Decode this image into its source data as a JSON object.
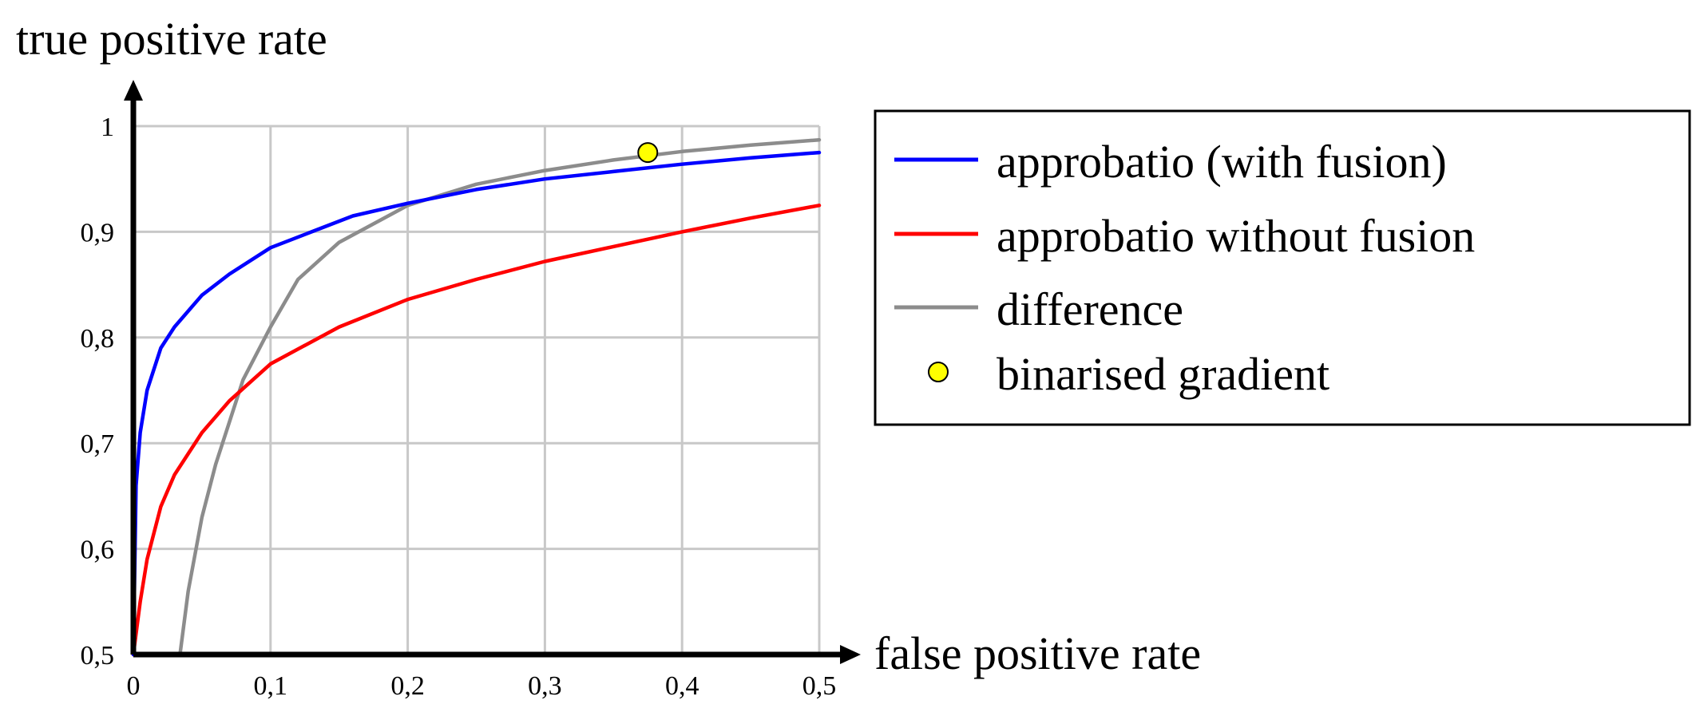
{
  "chart_data": {
    "type": "line",
    "xlabel": "false positive rate",
    "ylabel": "true positive rate",
    "xlim": [
      0,
      0.5
    ],
    "ylim": [
      0.5,
      1
    ],
    "x_ticks": [
      "0",
      "0,1",
      "0,2",
      "0,3",
      "0,4",
      "0,5"
    ],
    "y_ticks": [
      "0,5",
      "0,6",
      "0,7",
      "0,8",
      "0,9",
      "1"
    ],
    "grid": true,
    "legend_position": "right",
    "series": [
      {
        "name": "approbatio (with fusion)",
        "color": "#0000ff",
        "x": [
          0,
          0.002,
          0.005,
          0.01,
          0.02,
          0.03,
          0.05,
          0.07,
          0.1,
          0.13,
          0.16,
          0.2,
          0.25,
          0.3,
          0.35,
          0.4,
          0.45,
          0.5
        ],
        "y": [
          0.5,
          0.66,
          0.71,
          0.75,
          0.79,
          0.81,
          0.84,
          0.86,
          0.885,
          0.9,
          0.915,
          0.927,
          0.94,
          0.95,
          0.957,
          0.964,
          0.97,
          0.975
        ]
      },
      {
        "name": "approbatio without fusion",
        "color": "#ff0000",
        "x": [
          0,
          0.005,
          0.01,
          0.02,
          0.03,
          0.05,
          0.07,
          0.1,
          0.15,
          0.2,
          0.25,
          0.3,
          0.35,
          0.4,
          0.45,
          0.5
        ],
        "y": [
          0.5,
          0.55,
          0.59,
          0.64,
          0.67,
          0.71,
          0.74,
          0.775,
          0.81,
          0.836,
          0.855,
          0.872,
          0.886,
          0.9,
          0.913,
          0.925
        ]
      },
      {
        "name": "difference",
        "color": "#8c8c8c",
        "x": [
          0.034,
          0.04,
          0.05,
          0.06,
          0.07,
          0.08,
          0.1,
          0.12,
          0.15,
          0.2,
          0.25,
          0.3,
          0.35,
          0.4,
          0.45,
          0.5
        ],
        "y": [
          0.5,
          0.56,
          0.63,
          0.68,
          0.72,
          0.76,
          0.81,
          0.855,
          0.89,
          0.925,
          0.945,
          0.958,
          0.968,
          0.976,
          0.982,
          0.987
        ]
      },
      {
        "name": "binarised gradient",
        "color": "#ffff00",
        "marker": "circle",
        "x": [
          0.375
        ],
        "y": [
          0.975
        ]
      }
    ]
  }
}
